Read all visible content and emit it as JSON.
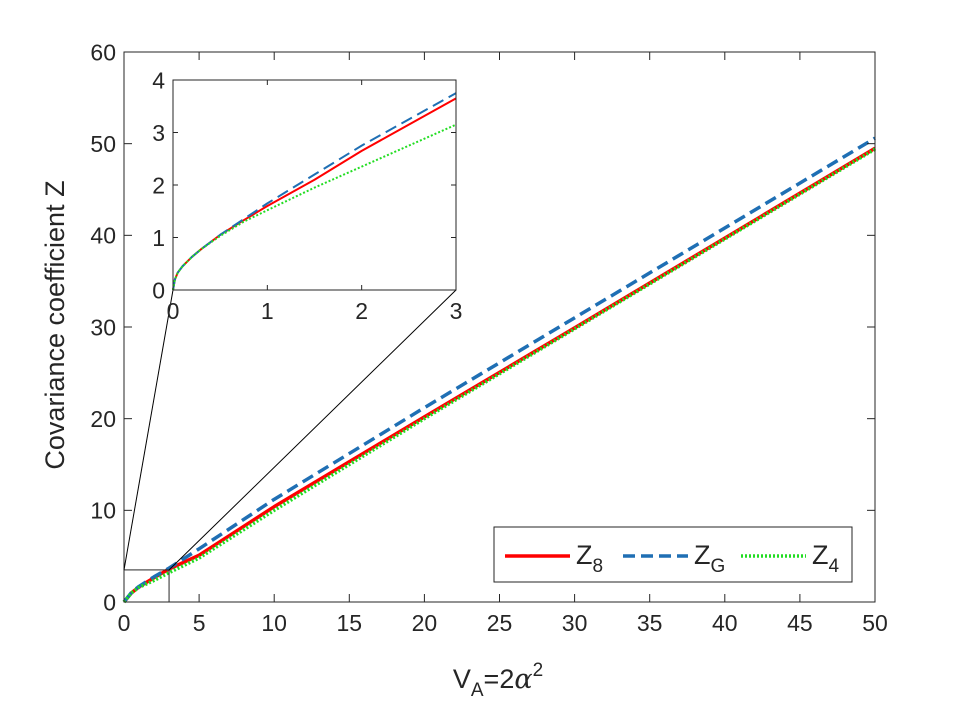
{
  "chart_data": [
    {
      "id": "main",
      "type": "line",
      "title": "",
      "xlabel": {
        "main": "V",
        "sub": "A",
        "rest": "=2",
        "greek": "α",
        "sup": "2"
      },
      "ylabel": "Covariance coefficient Z",
      "xlim": [
        0,
        50
      ],
      "ylim": [
        0,
        60
      ],
      "xticks": [
        0,
        5,
        10,
        15,
        20,
        25,
        30,
        35,
        40,
        45,
        50
      ],
      "yticks": [
        0,
        10,
        20,
        30,
        40,
        50,
        60
      ],
      "grid": false,
      "legend_position": "bottom-right",
      "series": [
        {
          "name": "Z",
          "subscript": "8",
          "color": "#ff0000",
          "style": "solid",
          "x": [
            0,
            0.5,
            1,
            2,
            3,
            5,
            10,
            20,
            30,
            40,
            50
          ],
          "y": [
            0,
            1.0,
            1.65,
            2.65,
            3.6,
            5.1,
            10.4,
            20.2,
            29.9,
            39.7,
            49.5
          ]
        },
        {
          "name": "Z",
          "subscript": "G",
          "color": "#1f6fb4",
          "style": "dashed",
          "x": [
            0,
            0.5,
            1,
            2,
            3,
            5,
            10,
            20,
            30,
            40,
            50
          ],
          "y": [
            0,
            1.05,
            1.7,
            2.75,
            3.7,
            5.8,
            11.2,
            21.2,
            31.0,
            40.8,
            50.6
          ]
        },
        {
          "name": "Z",
          "subscript": "4",
          "color": "#22dd22",
          "style": "dotted",
          "x": [
            0,
            0.5,
            1,
            2,
            3,
            5,
            10,
            20,
            30,
            40,
            50
          ],
          "y": [
            0,
            1.0,
            1.6,
            2.35,
            3.2,
            4.8,
            10.0,
            20.0,
            29.8,
            39.6,
            49.4
          ]
        }
      ],
      "zoom_box": {
        "x": [
          0,
          3
        ],
        "y": [
          0,
          3.5
        ]
      }
    },
    {
      "id": "inset",
      "type": "line",
      "title": "",
      "xlim": [
        0,
        3
      ],
      "ylim": [
        0,
        4
      ],
      "xticks": [
        0,
        1,
        2,
        3
      ],
      "yticks": [
        0,
        1,
        2,
        3,
        4
      ],
      "grid": false,
      "series": [
        {
          "name": "Z",
          "subscript": "8",
          "color": "#ff0000",
          "style": "solid",
          "x": [
            0,
            0.02,
            0.05,
            0.1,
            0.2,
            0.3,
            0.5,
            0.75,
            1.0,
            1.5,
            2.0,
            2.5,
            3.0
          ],
          "y": [
            0,
            0.2,
            0.33,
            0.45,
            0.63,
            0.78,
            1.05,
            1.33,
            1.6,
            2.1,
            2.65,
            3.15,
            3.65
          ]
        },
        {
          "name": "Z",
          "subscript": "G",
          "color": "#1f6fb4",
          "style": "dashed",
          "x": [
            0,
            0.02,
            0.05,
            0.1,
            0.2,
            0.3,
            0.5,
            0.75,
            1.0,
            1.5,
            2.0,
            2.5,
            3.0
          ],
          "y": [
            0,
            0.2,
            0.33,
            0.45,
            0.63,
            0.78,
            1.05,
            1.35,
            1.65,
            2.2,
            2.75,
            3.25,
            3.75
          ]
        },
        {
          "name": "Z",
          "subscript": "4",
          "color": "#22dd22",
          "style": "dotted",
          "x": [
            0,
            0.02,
            0.05,
            0.1,
            0.2,
            0.3,
            0.5,
            0.75,
            1.0,
            1.5,
            2.0,
            2.5,
            3.0
          ],
          "y": [
            0,
            0.2,
            0.33,
            0.45,
            0.63,
            0.78,
            1.03,
            1.3,
            1.52,
            1.95,
            2.35,
            2.75,
            3.15
          ]
        }
      ]
    }
  ]
}
